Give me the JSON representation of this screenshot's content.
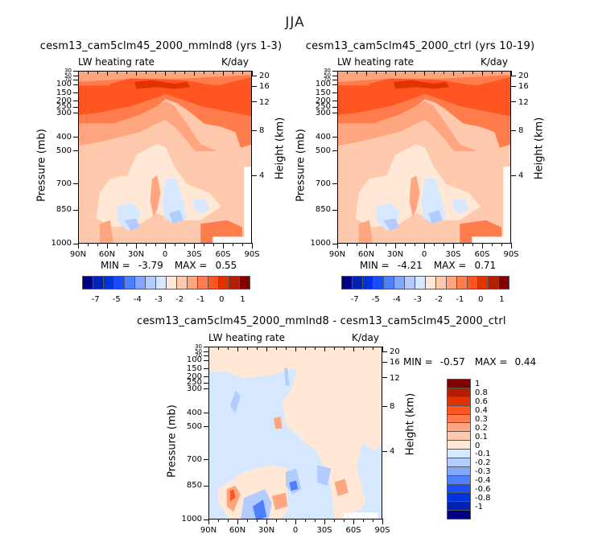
{
  "figure": {
    "title": "JJA"
  },
  "chart_data": [
    {
      "type": "heatmap",
      "title": "cesm13_cam5clm45_2000_mmlnd8 (yrs 1-3)",
      "subtitle_left": "LW heating rate",
      "subtitle_right": "K/day",
      "xlabel": "",
      "ylabel": "Pressure (mb)",
      "ylabel_right": "Height (km)",
      "x_ticks": [
        "90N",
        "60N",
        "30N",
        "0",
        "30S",
        "60S",
        "90S"
      ],
      "y_ticks": [
        "30",
        "50",
        "70",
        "100",
        "150",
        "200",
        "250",
        "300",
        "400",
        "500",
        "700",
        "850",
        "1000"
      ],
      "y_ticks_right": [
        "20",
        "16",
        "12",
        "8",
        "4"
      ],
      "ylim": [
        1000,
        30
      ],
      "xlim": [
        "90N",
        "90S"
      ],
      "min_label": "MIN =",
      "min_value": "-3.79",
      "max_label": "MAX =",
      "max_value": "0.55",
      "colorbar": {
        "orientation": "horizontal",
        "labels": [
          "-7",
          "-5",
          "-4",
          "-3",
          "-2",
          "-1",
          "0",
          "1"
        ],
        "levels": [
          -8,
          -7,
          -6,
          -5,
          -4,
          -3.5,
          -3,
          -2.5,
          -2,
          -1.5,
          -1,
          -0.5,
          0,
          0.5,
          1
        ],
        "colors": [
          "#00007f",
          "#0022b2",
          "#0033dd",
          "#1a4cff",
          "#4d7fff",
          "#80a8ff",
          "#b3ccff",
          "#d6e8ff",
          "#ffe8d6",
          "#ffc9ad",
          "#ffa680",
          "#ff7d4d",
          "#ff5520",
          "#e03300",
          "#b31f00",
          "#800000"
        ]
      },
      "summary": "Upper troposphere (100-300 mb) strongest cooling with values around -3 to -3.8 K/day; near-surface weak cooling with small regions of weak heating near 850 mb at 30N-60N and 0-15N"
    },
    {
      "type": "heatmap",
      "title": "cesm13_cam5clm45_2000_ctrl (yrs 10-19)",
      "subtitle_left": "LW heating rate",
      "subtitle_right": "K/day",
      "xlabel": "",
      "ylabel": "Pressure (mb)",
      "ylabel_right": "Height (km)",
      "x_ticks": [
        "90N",
        "60N",
        "30N",
        "0",
        "30S",
        "60S",
        "90S"
      ],
      "y_ticks": [
        "30",
        "50",
        "70",
        "100",
        "150",
        "200",
        "250",
        "300",
        "400",
        "500",
        "700",
        "850",
        "1000"
      ],
      "y_ticks_right": [
        "20",
        "16",
        "12",
        "8",
        "4"
      ],
      "ylim": [
        1000,
        30
      ],
      "xlim": [
        "90N",
        "90S"
      ],
      "min_label": "MIN =",
      "min_value": "-4.21",
      "max_label": "MAX =",
      "max_value": "0.71",
      "colorbar": {
        "orientation": "horizontal",
        "labels": [
          "-7",
          "-5",
          "-4",
          "-3",
          "-2",
          "-1",
          "0",
          "1"
        ],
        "levels": [
          -8,
          -7,
          -6,
          -5,
          -4,
          -3.5,
          -3,
          -2.5,
          -2,
          -1.5,
          -1,
          -0.5,
          0,
          0.5,
          1
        ],
        "colors": [
          "#00007f",
          "#0022b2",
          "#0033dd",
          "#1a4cff",
          "#4d7fff",
          "#80a8ff",
          "#b3ccff",
          "#d6e8ff",
          "#ffe8d6",
          "#ffc9ad",
          "#ffa680",
          "#ff7d4d",
          "#ff5520",
          "#e03300",
          "#b31f00",
          "#800000"
        ]
      },
      "summary": "Pattern nearly identical to mmlnd8 panel; strongest cooling in upper troposphere near 100-150 mb between 40N and 20S"
    },
    {
      "type": "heatmap",
      "title": "cesm13_cam5clm45_2000_mmlnd8 - cesm13_cam5clm45_2000_ctrl",
      "subtitle_left": "LW heating rate",
      "subtitle_right": "K/day",
      "xlabel": "",
      "ylabel": "Pressure (mb)",
      "ylabel_right": "Height (km)",
      "x_ticks": [
        "90N",
        "60N",
        "30N",
        "0",
        "30S",
        "60S",
        "90S"
      ],
      "y_ticks": [
        "30",
        "50",
        "70",
        "100",
        "150",
        "200",
        "250",
        "300",
        "400",
        "500",
        "700",
        "850",
        "1000"
      ],
      "y_ticks_right": [
        "20",
        "16",
        "12",
        "8",
        "4"
      ],
      "ylim": [
        1000,
        30
      ],
      "xlim": [
        "90N",
        "90S"
      ],
      "min_label": "MIN =",
      "min_value": "-0.57",
      "max_label": "MAX =",
      "max_value": "0.44",
      "colorbar": {
        "orientation": "vertical",
        "labels": [
          "1",
          "0.8",
          "0.6",
          "0.4",
          "0.3",
          "0.2",
          "0.1",
          "0",
          "-0.1",
          "-0.2",
          "-0.3",
          "-0.4",
          "-0.6",
          "-0.8",
          "-1"
        ],
        "colors_top_to_bottom": [
          "#800000",
          "#b31f00",
          "#e03300",
          "#ff5520",
          "#ff7d4d",
          "#ffa680",
          "#ffc9ad",
          "#ffe8d6",
          "#d6e8ff",
          "#b3ccff",
          "#80a8ff",
          "#4d7fff",
          "#1a4cff",
          "#0033dd",
          "#0022b2",
          "#00007f"
        ]
      },
      "summary": "Differences mostly within +/-0.1 K/day; positive anomalies near 850-1000 mb around 60-70N, 0-10N and 50-60S; negative anomalies near 1000 mb around 50-60N and 850 mb at 5S"
    }
  ]
}
